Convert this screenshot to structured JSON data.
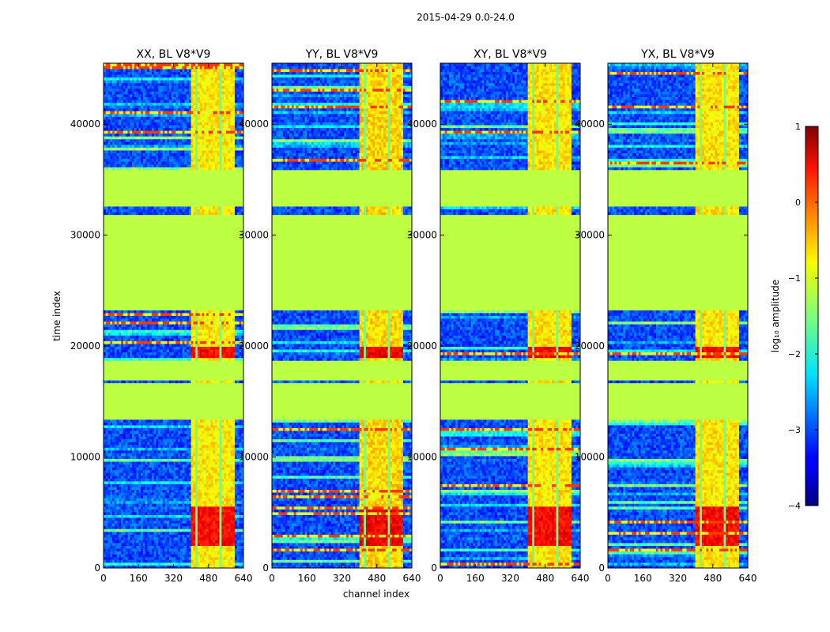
{
  "suptitle": "2015-04-29 0.0-24.0",
  "xlabel": "channel index",
  "ylabel": "time index",
  "colorbar": {
    "label": "log₁₀ amplitude",
    "range": [
      -4,
      1
    ],
    "ticks": [
      {
        "value": 1,
        "label": "1"
      },
      {
        "value": 0,
        "label": "0"
      },
      {
        "value": -1,
        "label": "−1"
      },
      {
        "value": -2,
        "label": "−2"
      },
      {
        "value": -3,
        "label": "−3"
      },
      {
        "value": -4,
        "label": "−4"
      }
    ]
  },
  "chart_data": {
    "type": "heatmap",
    "xlim": [
      0,
      640
    ],
    "ylim": [
      0,
      45500
    ],
    "xticks": [
      {
        "value": 0,
        "label": "0"
      },
      {
        "value": 160,
        "label": "160"
      },
      {
        "value": 320,
        "label": "320"
      },
      {
        "value": 480,
        "label": "480"
      },
      {
        "value": 640,
        "label": "640"
      }
    ],
    "yticks": [
      {
        "value": 0,
        "label": "0"
      },
      {
        "value": 10000,
        "label": "10000"
      },
      {
        "value": 20000,
        "label": "20000"
      },
      {
        "value": 30000,
        "label": "30000"
      },
      {
        "value": 40000,
        "label": "40000"
      }
    ],
    "panels": [
      {
        "title": "XX, BL V8*V9",
        "intensity": 1.0
      },
      {
        "title": "YY, BL V8*V9",
        "intensity": 1.15
      },
      {
        "title": "XY, BL V8*V9",
        "intensity": 1.05
      },
      {
        "title": "YX, BL V8*V9",
        "intensity": 1.05
      }
    ],
    "flagged_time_ranges": [
      [
        13500,
        16800
      ],
      [
        17000,
        18600
      ],
      [
        23300,
        31900
      ],
      [
        32500,
        35800
      ]
    ],
    "flag_value": -1.2,
    "strong_channel_range": [
      405,
      600
    ],
    "hot_time_ranges": [
      [
        2000,
        5500
      ],
      [
        19000,
        20000
      ]
    ],
    "hot_value": 0.6,
    "background_value": -3.0
  }
}
